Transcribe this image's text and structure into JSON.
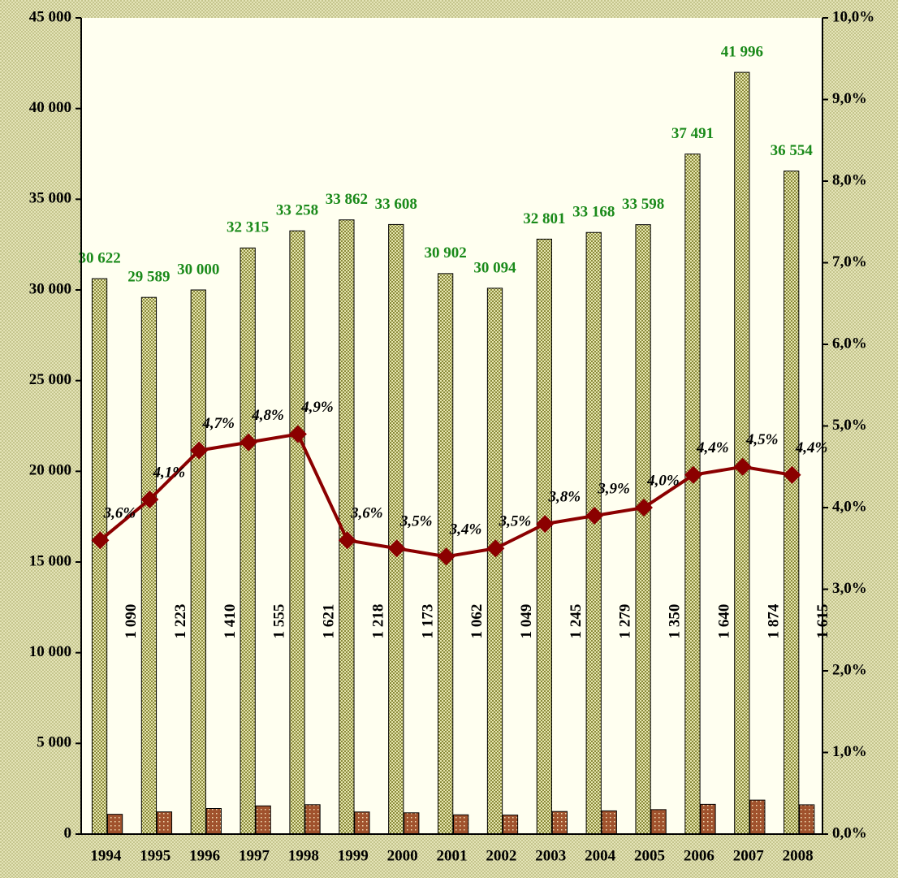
{
  "chart_data": {
    "type": "bar_line",
    "categories": [
      "1994",
      "1995",
      "1996",
      "1997",
      "1998",
      "1999",
      "2000",
      "2001",
      "2002",
      "2003",
      "2004",
      "2005",
      "2006",
      "2007",
      "2008"
    ],
    "series": [
      {
        "type": "bar",
        "color": "#8a8a3a",
        "label_color": "#1a8a1a",
        "values": [
          30622,
          29589,
          30000,
          32315,
          33258,
          33862,
          33608,
          30902,
          30094,
          32801,
          33168,
          33598,
          37491,
          41996,
          36554
        ],
        "value_labels": [
          "30 622",
          "29 589",
          "30 000",
          "32 315",
          "33 258",
          "33 862",
          "33 608",
          "30 902",
          "30 094",
          "32 801",
          "33 168",
          "33 598",
          "37 491",
          "41 996",
          "36 554"
        ]
      },
      {
        "type": "bar",
        "color": "#a0522d",
        "values": [
          1090,
          1223,
          1410,
          1555,
          1621,
          1218,
          1173,
          1062,
          1049,
          1245,
          1279,
          1350,
          1640,
          1874,
          1615
        ],
        "value_labels": [
          "1 090",
          "1 223",
          "1 410",
          "1 555",
          "1 621",
          "1 218",
          "1 173",
          "1 062",
          "1 049",
          "1 245",
          "1 279",
          "1 350",
          "1 640",
          "1 874",
          "1 615"
        ]
      },
      {
        "type": "line",
        "axis": "y2",
        "color": "#8b0000",
        "values": [
          3.6,
          4.1,
          4.7,
          4.8,
          4.9,
          3.6,
          3.5,
          3.4,
          3.5,
          3.8,
          3.9,
          4.0,
          4.4,
          4.5,
          4.4
        ],
        "value_labels": [
          "3,6%",
          "4,1%",
          "4,7%",
          "4,8%",
          "4,9%",
          "3,6%",
          "3,5%",
          "3,4%",
          "3,5%",
          "3,8%",
          "3,9%",
          "4,0%",
          "4,4%",
          "4,5%",
          "4,4%"
        ]
      }
    ],
    "ylim": [
      0,
      45000
    ],
    "yticks": [
      0,
      {
        "value": 5000,
        "label": "5 000"
      },
      {
        "value": 10000,
        "label": "10 000"
      },
      {
        "value": 15000,
        "label": "15 000"
      },
      {
        "value": 20000,
        "label": "20 000"
      },
      {
        "value": 25000,
        "label": "25 000"
      },
      {
        "value": 30000,
        "label": "30 000"
      },
      {
        "value": 35000,
        "label": "35 000"
      },
      {
        "value": 40000,
        "label": "40 000"
      },
      {
        "value": 45000,
        "label": "45 000"
      }
    ],
    "y2lim": [
      0,
      10
    ],
    "y2ticks": [
      {
        "value": 0,
        "label": "0,0%"
      },
      {
        "value": 1,
        "label": "1,0%"
      },
      {
        "value": 2,
        "label": "2,0%"
      },
      {
        "value": 3,
        "label": "3,0%"
      },
      {
        "value": 4,
        "label": "4,0%"
      },
      {
        "value": 5,
        "label": "5,0%"
      },
      {
        "value": 6,
        "label": "6,0%"
      },
      {
        "value": 7,
        "label": "7,0%"
      },
      {
        "value": 8,
        "label": "8,0%"
      },
      {
        "value": 9,
        "label": "9,0%"
      },
      {
        "value": 10,
        "label": "10,0%"
      }
    ]
  }
}
